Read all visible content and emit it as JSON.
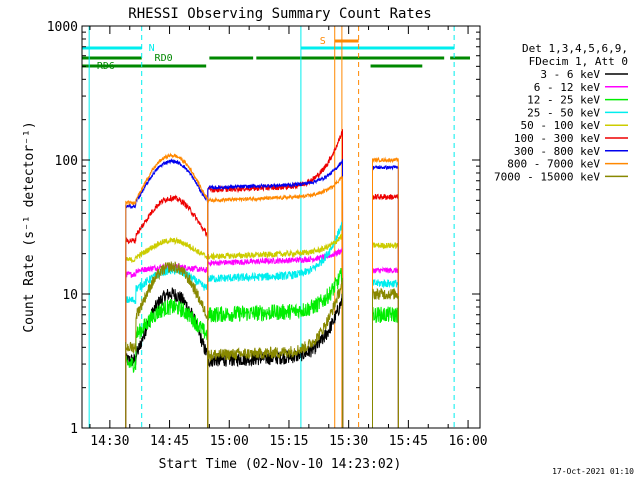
{
  "chart_data": {
    "type": "line",
    "title": "RHESSI Observing Summary Count Rates",
    "xlabel": "Start Time (02-Nov-10 14:23:02)",
    "ylabel": "Count Rate (s⁻¹ detector⁻¹)",
    "yscale": "log",
    "ylim": [
      1,
      1000
    ],
    "xlim_minutes_from_1430": [
      -7,
      93
    ],
    "x_tick_labels": [
      "14:30",
      "14:45",
      "15:00",
      "15:15",
      "15:30",
      "15:45",
      "16:00"
    ],
    "y_tick_labels": [
      "1",
      "10",
      "100",
      "1000"
    ],
    "legend_header": [
      "Det 1,3,4,5,6,9,",
      "FDecim 1, Att 0"
    ],
    "series": [
      {
        "name": "3 - 6 keV",
        "color": "#000000",
        "start": 3.2,
        "base": 3.5,
        "peak": 10,
        "late": 3.2,
        "rise": 9,
        "post": null,
        "noise": 0.12
      },
      {
        "name": "6 - 12 keV",
        "color": "#ff00ff",
        "start": 14,
        "base": 15,
        "peak": 16,
        "late": 17,
        "rise": 20,
        "post": 15,
        "noise": 0.05
      },
      {
        "name": "12 - 25 keV",
        "color": "#00ee00",
        "start": 3,
        "base": 5,
        "peak": 8,
        "late": 7,
        "rise": 14,
        "post": 7,
        "noise": 0.14
      },
      {
        "name": "25 - 50 keV",
        "color": "#00eeee",
        "start": 9,
        "base": 11,
        "peak": 15,
        "late": 13,
        "rise": 33,
        "post": 12,
        "noise": 0.07
      },
      {
        "name": "50 - 100 keV",
        "color": "#cccc00",
        "start": 18,
        "base": 19,
        "peak": 25,
        "late": 19,
        "rise": 26,
        "post": 23,
        "noise": 0.05
      },
      {
        "name": "100 - 300 keV",
        "color": "#ee0000",
        "start": 25,
        "base": 28,
        "peak": 52,
        "late": 60,
        "rise": 160,
        "post": 53,
        "noise": 0.05
      },
      {
        "name": "300 - 800 keV",
        "color": "#0000ee",
        "start": 45,
        "base": 50,
        "peak": 98,
        "late": 62,
        "rise": 95,
        "post": 88,
        "noise": 0.03
      },
      {
        "name": "800 - 7000 keV",
        "color": "#ff8800",
        "start": 48,
        "base": 52,
        "peak": 108,
        "late": 50,
        "rise": 72,
        "post": 100,
        "noise": 0.03
      },
      {
        "name": "7000 - 15000 keV",
        "color": "#888800",
        "start": 4,
        "base": 7,
        "peak": 16,
        "late": 3.5,
        "rise": 12,
        "post": 10,
        "noise": 0.1
      }
    ],
    "flag_labels": {
      "n": "N",
      "rd0": "RD0",
      "rd6": "RD6",
      "s": "S"
    },
    "flag_colors": {
      "n": "#00eeee",
      "rd": "#008800",
      "s": "#ff8800"
    },
    "timestamp": "17-Oct-2021 01:10"
  }
}
